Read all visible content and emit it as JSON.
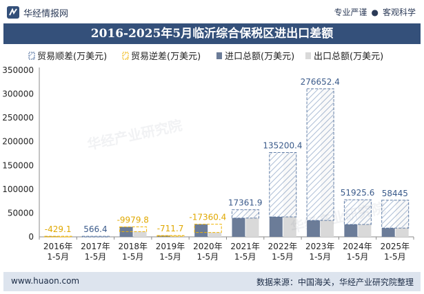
{
  "header": {
    "brand": "华经情报网",
    "tagline_left": "专业严谨",
    "tagline_right": "客观科学"
  },
  "title": "2016-2025年5月临沂综合保税区进出口差额",
  "footer": {
    "url": "www.huaon.com",
    "source": "数据来源：中国海关，华经产业研究院整理"
  },
  "watermark": "华经产业研究院",
  "colors": {
    "title_bg": "#34507a",
    "import": "#6b7c98",
    "export": "#d9d9d9",
    "surplus": "#4a6a9a",
    "deficit": "#f0b400",
    "footer_bg": "#dde4ee"
  },
  "chart_data": {
    "type": "bar",
    "categories": [
      "2016年\n1-5月",
      "2017年\n1-5月",
      "2018年\n1-5月",
      "2019年\n1-5月",
      "2020年\n1-5月",
      "2021年\n1-5月",
      "2022年\n1-5月",
      "2023年\n1-5月",
      "2024年\n1-5月",
      "2025年\n1-5月"
    ],
    "series": [
      {
        "name": "贸易顺差(万美元)",
        "values": [
          null,
          566.4,
          null,
          null,
          null,
          17361.9,
          135200.4,
          276652.4,
          51925.6,
          58445
        ]
      },
      {
        "name": "贸易逆差(万美元)",
        "values": [
          -429.1,
          null,
          -9979.8,
          -711.7,
          -17360.4,
          null,
          null,
          null,
          null,
          null
        ]
      },
      {
        "name": "进口总额(万美元)",
        "values": [
          1200,
          700,
          21000,
          2700,
          26500,
          39500,
          42000,
          34500,
          26000,
          18500
        ]
      },
      {
        "name": "出口总额(万美元)",
        "values": [
          771,
          1266,
          11020,
          1988,
          9140,
          56862,
          177200,
          311152,
          77926,
          76945
        ]
      }
    ],
    "data_labels": [
      "-429.1",
      "566.4",
      "-9979.8",
      "-711.7",
      "-17360.4",
      "17361.9",
      "135200.4",
      "276652.4",
      "51925.6",
      "58445"
    ],
    "yticks": [
      0,
      50000,
      100000,
      150000,
      200000,
      250000,
      300000,
      350000
    ],
    "ylim": [
      0,
      350000
    ],
    "legend_position": "top",
    "grid": false
  }
}
